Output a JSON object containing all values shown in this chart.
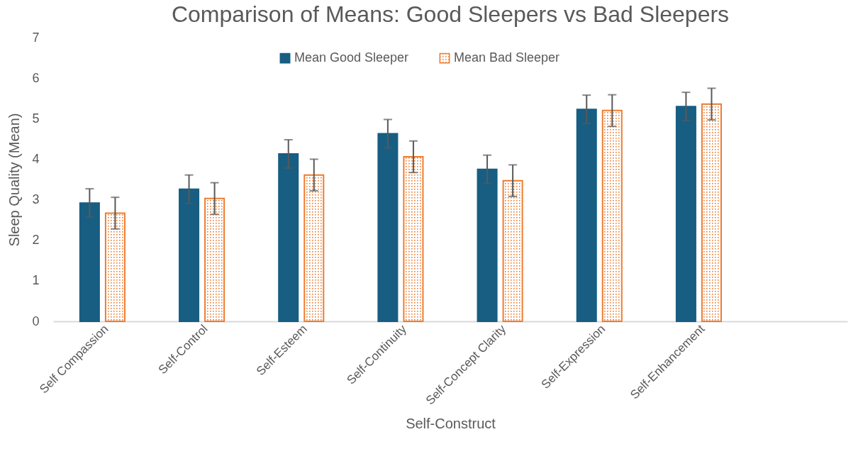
{
  "chart_data": {
    "type": "bar",
    "title": "Comparison of Means: Good Sleepers vs Bad Sleepers",
    "xlabel": "Self-Construct",
    "ylabel": "Sleep Quality (Mean)",
    "categories": [
      "Self Compassion",
      "Self-Control",
      "Self-Esteem",
      "Self-Continuity",
      "Self-Concept Clarity",
      "Self-Expression",
      "Self-Enhancement",
      null
    ],
    "series": [
      {
        "name": "Mean Good Sleeper",
        "color": "#175e82",
        "values": [
          2.92,
          3.26,
          4.13,
          4.63,
          3.75,
          5.23,
          5.3,
          null
        ],
        "errors": [
          0.35,
          0.35,
          0.35,
          0.35,
          0.35,
          0.35,
          0.35,
          null
        ]
      },
      {
        "name": "Mean Bad Sleeper",
        "color": "#ed7d31",
        "values": [
          2.67,
          3.03,
          3.61,
          4.06,
          3.47,
          5.2,
          5.36,
          null
        ],
        "errors": [
          0.39,
          0.39,
          0.39,
          0.39,
          0.39,
          0.39,
          0.39,
          null
        ]
      }
    ],
    "ylim": [
      0,
      7
    ],
    "yticks": [
      0,
      1,
      2,
      3,
      4,
      5,
      6,
      7
    ],
    "grid": false,
    "legend": "top"
  }
}
